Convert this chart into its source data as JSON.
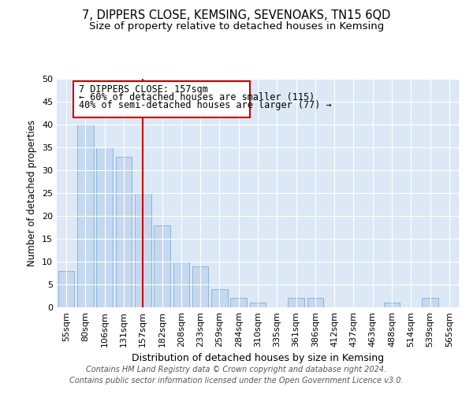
{
  "title": "7, DIPPERS CLOSE, KEMSING, SEVENOAKS, TN15 6QD",
  "subtitle": "Size of property relative to detached houses in Kemsing",
  "xlabel": "Distribution of detached houses by size in Kemsing",
  "ylabel": "Number of detached properties",
  "categories": [
    "55sqm",
    "80sqm",
    "106sqm",
    "131sqm",
    "157sqm",
    "182sqm",
    "208sqm",
    "233sqm",
    "259sqm",
    "284sqm",
    "310sqm",
    "335sqm",
    "361sqm",
    "386sqm",
    "412sqm",
    "437sqm",
    "463sqm",
    "488sqm",
    "514sqm",
    "539sqm",
    "565sqm"
  ],
  "values": [
    8,
    40,
    35,
    33,
    25,
    18,
    10,
    9,
    4,
    2,
    1,
    0,
    2,
    2,
    0,
    0,
    0,
    1,
    0,
    2,
    0
  ],
  "bar_color": "#c5d8ef",
  "bar_edge_color": "#8ab4d8",
  "vline_x_index": 4,
  "vline_color": "#cc0000",
  "annotation_line1": "7 DIPPERS CLOSE: 157sqm",
  "annotation_line2": "← 60% of detached houses are smaller (115)",
  "annotation_line3": "40% of semi-detached houses are larger (77) →",
  "annotation_box_facecolor": "#ffffff",
  "annotation_box_edgecolor": "#cc0000",
  "ylim": [
    0,
    50
  ],
  "yticks": [
    0,
    5,
    10,
    15,
    20,
    25,
    30,
    35,
    40,
    45,
    50
  ],
  "background_color": "#dce8f5",
  "grid_color": "#ffffff",
  "footer_line1": "Contains HM Land Registry data © Crown copyright and database right 2024.",
  "footer_line2": "Contains public sector information licensed under the Open Government Licence v3.0.",
  "title_fontsize": 10.5,
  "subtitle_fontsize": 9.5,
  "xlabel_fontsize": 9,
  "ylabel_fontsize": 8.5,
  "tick_fontsize": 8,
  "annotation_fontsize": 8.5,
  "footer_fontsize": 7
}
